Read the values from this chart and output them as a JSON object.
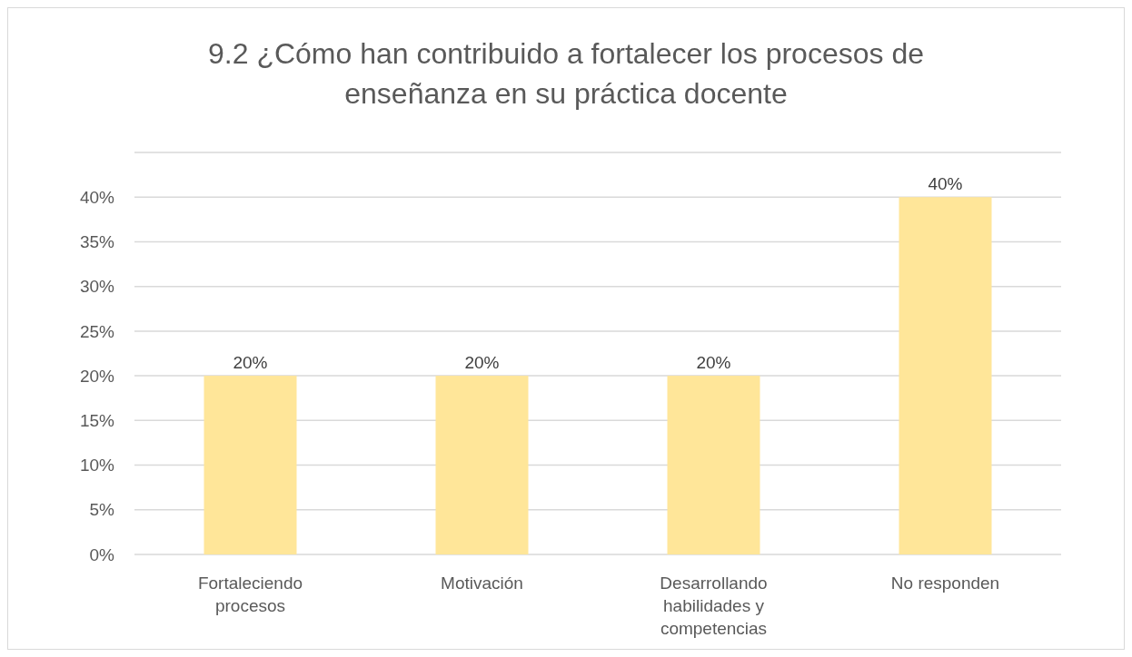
{
  "chart_data": {
    "type": "bar",
    "title": "9.2 ¿Cómo han contribuido a fortalecer los procesos de enseñanza en su práctica docente",
    "categories": [
      "Fortaleciendo procesos",
      "Motivación",
      "Desarrollando habilidades y competencias",
      "No responden"
    ],
    "values": [
      20,
      20,
      20,
      40
    ],
    "value_labels": [
      "20%",
      "20%",
      "20%",
      "40%"
    ],
    "color": "#ffe699",
    "ylim": [
      0,
      45
    ],
    "yticks": [
      {
        "value": 0,
        "label": "0%"
      },
      {
        "value": 5,
        "label": "5%"
      },
      {
        "value": 10,
        "label": "10%"
      },
      {
        "value": 15,
        "label": "15%"
      },
      {
        "value": 20,
        "label": "20%"
      },
      {
        "value": 25,
        "label": "25%"
      },
      {
        "value": 30,
        "label": "30%"
      },
      {
        "value": 35,
        "label": "35%"
      },
      {
        "value": 40,
        "label": "40%"
      },
      {
        "value": 45,
        "label": null
      }
    ],
    "grid": "y"
  }
}
